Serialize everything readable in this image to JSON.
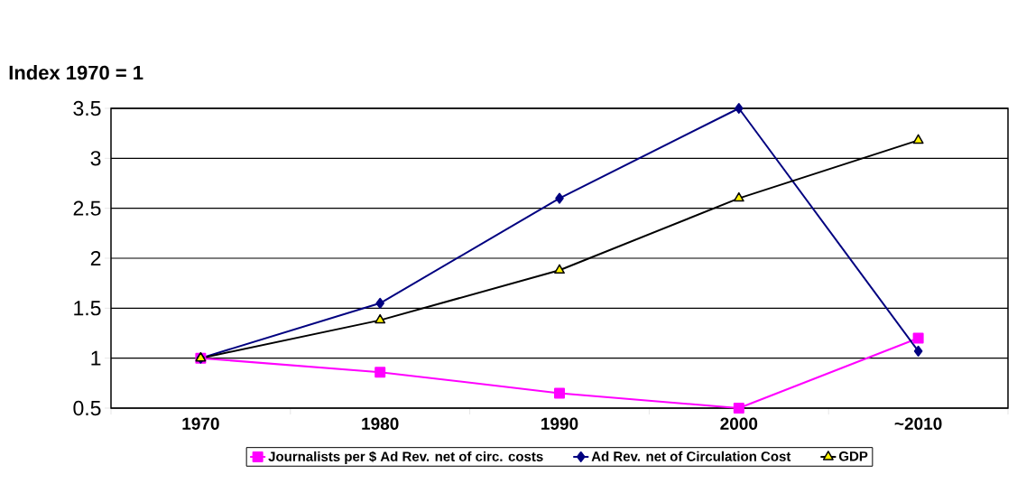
{
  "chart_data": {
    "type": "line",
    "ylabel": "Index 1970 = 1",
    "categories": [
      "1970",
      "1980",
      "1990",
      "2000",
      "~2010"
    ],
    "series": [
      {
        "name": "Journalists per $ Ad Rev. net of circ. costs",
        "color": "#ff00ff",
        "marker": "square",
        "values": [
          1.0,
          0.86,
          0.65,
          0.5,
          1.2
        ]
      },
      {
        "name": "Ad Rev. net of Circulation Cost",
        "color": "#000080",
        "marker": "diamond",
        "values": [
          1.0,
          1.55,
          2.6,
          3.5,
          1.07
        ]
      },
      {
        "name": "GDP",
        "color": "#000000",
        "marker": "triangle",
        "values": [
          1.0,
          1.38,
          1.88,
          2.6,
          3.18
        ]
      }
    ],
    "ylim": [
      0.5,
      3.5
    ],
    "yticks": [
      0.5,
      1,
      1.5,
      2,
      2.5,
      3,
      3.5
    ],
    "grid": "y",
    "legend": "bottom",
    "line_style": "solid"
  }
}
